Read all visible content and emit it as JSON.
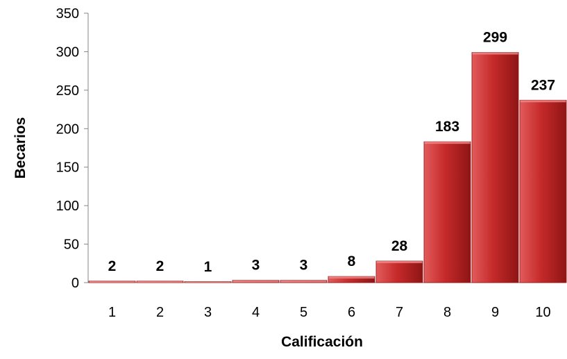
{
  "chart_data": {
    "type": "bar",
    "title": "",
    "xlabel": "Calificación",
    "ylabel": "Becarios",
    "categories": [
      "1",
      "2",
      "3",
      "4",
      "5",
      "6",
      "7",
      "8",
      "9",
      "10"
    ],
    "values": [
      2,
      2,
      1,
      3,
      3,
      8,
      28,
      183,
      299,
      237
    ],
    "data_labels": [
      "2",
      "2",
      "1",
      "3",
      "3",
      "8",
      "28",
      "183",
      "299",
      "237"
    ],
    "ylim": [
      0,
      350
    ],
    "yticks": [
      "0",
      "50",
      "100",
      "150",
      "200",
      "250",
      "300",
      "350"
    ],
    "grid": false,
    "legend": "none",
    "colors": {
      "bar_light": "#e25b5b",
      "bar_main": "#c62a2a",
      "bar_dark": "#8f1515",
      "bar_top": "#f08a8a"
    }
  }
}
